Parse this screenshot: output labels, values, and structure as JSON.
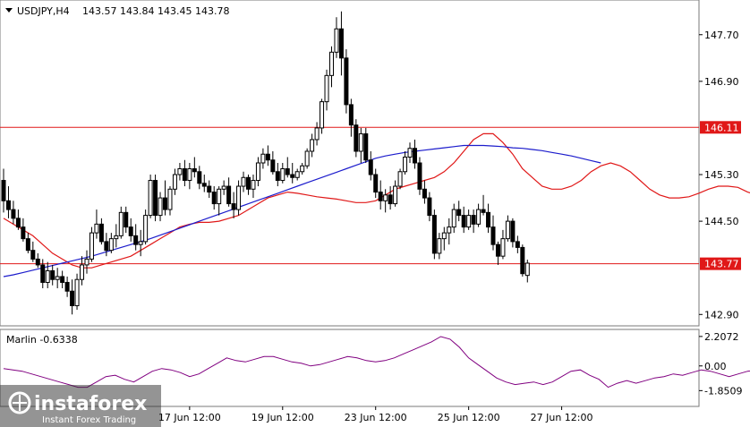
{
  "header": {
    "symbol": "USDJPY,H4",
    "ohlc": "143.57 143.84 143.45 143.78"
  },
  "indicator": {
    "label": "Marlin -0.6338",
    "ticks": [
      "2.2072",
      "0.00",
      "-1.8509"
    ],
    "tick_values": [
      2.2072,
      0.0,
      -1.8509
    ],
    "ylim": [
      -2.9,
      2.6
    ]
  },
  "watermark": {
    "brand": "instaforex",
    "tagline": "Instant Forex Trading"
  },
  "colors": {
    "candle": "#000000",
    "fast_ma": "#e01818",
    "slow_ma": "#1c1ccc",
    "hline": "#e01818",
    "oscillator": "#800080",
    "tag_bg": "#e01818",
    "panel_bg": "#eeeeee"
  },
  "chart_data": {
    "type": "candlestick",
    "ylim": [
      142.72,
      148.28
    ],
    "y_ticks": [
      "147.70",
      "146.90",
      "146.11",
      "145.30",
      "144.50",
      "143.77",
      "142.90"
    ],
    "y_tick_values": [
      147.7,
      146.9,
      146.11,
      145.3,
      144.5,
      143.77,
      142.9
    ],
    "x_ticks": [
      "17 Jun 12:00",
      "19 Jun 12:00",
      "23 Jun 12:00",
      "25 Jun 12:00",
      "27 Jun 12:00"
    ],
    "x_tick_candle_index": [
      38,
      57,
      76,
      95,
      114
    ],
    "candles": [
      [
        145.2,
        145.4,
        144.65,
        144.85
      ],
      [
        144.85,
        145.1,
        144.55,
        144.7
      ],
      [
        144.7,
        144.85,
        144.45,
        144.55
      ],
      [
        144.55,
        144.7,
        144.35,
        144.4
      ],
      [
        144.4,
        144.55,
        144.15,
        144.2
      ],
      [
        144.2,
        144.3,
        143.95,
        144.0
      ],
      [
        144.0,
        144.15,
        143.8,
        143.85
      ],
      [
        143.85,
        143.95,
        143.7,
        143.75
      ],
      [
        143.75,
        143.85,
        143.35,
        143.45
      ],
      [
        143.45,
        143.8,
        143.35,
        143.65
      ],
      [
        143.65,
        143.75,
        143.4,
        143.5
      ],
      [
        143.5,
        143.7,
        143.35,
        143.55
      ],
      [
        143.55,
        143.65,
        143.35,
        143.45
      ],
      [
        143.45,
        143.55,
        143.2,
        143.3
      ],
      [
        143.3,
        143.5,
        142.9,
        143.05
      ],
      [
        143.05,
        143.6,
        142.98,
        143.5
      ],
      [
        143.5,
        143.9,
        143.4,
        143.75
      ],
      [
        143.75,
        144.0,
        143.6,
        143.85
      ],
      [
        143.85,
        144.4,
        143.8,
        144.3
      ],
      [
        144.3,
        144.7,
        144.2,
        144.45
      ],
      [
        144.45,
        144.55,
        144.1,
        144.15
      ],
      [
        144.15,
        144.3,
        143.9,
        144.0
      ],
      [
        144.0,
        144.3,
        143.95,
        144.2
      ],
      [
        144.2,
        144.45,
        144.05,
        144.25
      ],
      [
        144.25,
        144.75,
        144.2,
        144.65
      ],
      [
        144.65,
        144.75,
        144.3,
        144.4
      ],
      [
        144.4,
        144.55,
        144.15,
        144.25
      ],
      [
        144.25,
        144.45,
        144.0,
        144.1
      ],
      [
        144.1,
        144.35,
        143.9,
        144.15
      ],
      [
        144.15,
        144.7,
        144.1,
        144.6
      ],
      [
        144.6,
        145.3,
        144.55,
        145.2
      ],
      [
        145.2,
        145.3,
        144.5,
        144.6
      ],
      [
        144.6,
        145.0,
        144.5,
        144.9
      ],
      [
        144.9,
        145.2,
        144.6,
        144.7
      ],
      [
        144.7,
        145.1,
        144.6,
        145.05
      ],
      [
        145.05,
        145.4,
        144.95,
        145.3
      ],
      [
        145.3,
        145.5,
        145.2,
        145.4
      ],
      [
        145.4,
        145.55,
        145.1,
        145.2
      ],
      [
        145.2,
        145.5,
        145.05,
        145.4
      ],
      [
        145.4,
        145.6,
        145.25,
        145.35
      ],
      [
        145.35,
        145.45,
        145.05,
        145.15
      ],
      [
        145.15,
        145.3,
        145.0,
        145.1
      ],
      [
        145.1,
        145.2,
        144.9,
        145.0
      ],
      [
        145.0,
        145.1,
        144.7,
        144.8
      ],
      [
        144.8,
        145.1,
        144.6,
        145.05
      ],
      [
        145.05,
        145.2,
        144.95,
        145.1
      ],
      [
        145.1,
        145.25,
        144.75,
        144.8
      ],
      [
        144.8,
        145.0,
        144.55,
        144.7
      ],
      [
        144.7,
        145.2,
        144.6,
        145.1
      ],
      [
        145.1,
        145.35,
        145.0,
        145.25
      ],
      [
        145.25,
        145.3,
        144.95,
        145.05
      ],
      [
        145.05,
        145.3,
        144.9,
        145.2
      ],
      [
        145.2,
        145.6,
        145.1,
        145.5
      ],
      [
        145.5,
        145.75,
        145.4,
        145.65
      ],
      [
        145.65,
        145.8,
        145.45,
        145.55
      ],
      [
        145.55,
        145.7,
        145.3,
        145.35
      ],
      [
        145.35,
        145.5,
        145.1,
        145.2
      ],
      [
        145.2,
        145.5,
        145.15,
        145.4
      ],
      [
        145.4,
        145.6,
        145.25,
        145.3
      ],
      [
        145.3,
        145.5,
        145.15,
        145.25
      ],
      [
        145.25,
        145.4,
        145.2,
        145.35
      ],
      [
        145.35,
        145.5,
        145.3,
        145.45
      ],
      [
        145.45,
        145.75,
        145.4,
        145.7
      ],
      [
        145.7,
        146.0,
        145.6,
        145.9
      ],
      [
        145.9,
        146.2,
        145.8,
        146.1
      ],
      [
        146.1,
        146.6,
        146.0,
        146.55
      ],
      [
        146.55,
        147.1,
        146.4,
        147.0
      ],
      [
        147.0,
        147.5,
        146.8,
        147.4
      ],
      [
        147.4,
        148.0,
        147.3,
        147.8
      ],
      [
        147.8,
        148.1,
        147.0,
        147.3
      ],
      [
        147.3,
        147.45,
        146.35,
        146.5
      ],
      [
        146.5,
        146.6,
        145.95,
        146.15
      ],
      [
        146.15,
        146.25,
        145.6,
        145.7
      ],
      [
        145.7,
        146.1,
        145.5,
        146.0
      ],
      [
        146.0,
        146.1,
        145.5,
        145.55
      ],
      [
        145.55,
        145.7,
        145.2,
        145.3
      ],
      [
        145.3,
        145.4,
        144.9,
        145.0
      ],
      [
        145.0,
        145.2,
        144.7,
        144.85
      ],
      [
        144.85,
        145.05,
        144.65,
        144.95
      ],
      [
        144.95,
        145.1,
        144.7,
        144.8
      ],
      [
        144.8,
        145.2,
        144.75,
        145.1
      ],
      [
        145.1,
        145.4,
        145.05,
        145.35
      ],
      [
        145.35,
        145.7,
        145.3,
        145.6
      ],
      [
        145.6,
        145.85,
        145.5,
        145.75
      ],
      [
        145.75,
        145.9,
        145.4,
        145.5
      ],
      [
        145.5,
        145.6,
        144.95,
        145.05
      ],
      [
        145.05,
        145.2,
        144.8,
        144.9
      ],
      [
        144.9,
        145.0,
        144.5,
        144.6
      ],
      [
        144.6,
        144.7,
        143.85,
        143.95
      ],
      [
        143.95,
        144.3,
        143.85,
        144.2
      ],
      [
        144.2,
        144.4,
        144.0,
        144.3
      ],
      [
        144.3,
        144.55,
        144.1,
        144.4
      ],
      [
        144.4,
        144.8,
        144.3,
        144.7
      ],
      [
        144.7,
        144.85,
        144.5,
        144.6
      ],
      [
        144.6,
        144.75,
        144.3,
        144.4
      ],
      [
        144.4,
        144.7,
        144.35,
        144.6
      ],
      [
        144.6,
        144.7,
        144.3,
        144.45
      ],
      [
        144.45,
        144.8,
        144.4,
        144.7
      ],
      [
        144.7,
        144.95,
        144.6,
        144.65
      ],
      [
        144.65,
        144.8,
        144.3,
        144.4
      ],
      [
        144.4,
        144.6,
        144.0,
        144.1
      ],
      [
        144.1,
        144.15,
        143.75,
        143.9
      ],
      [
        143.9,
        144.35,
        143.85,
        144.2
      ],
      [
        144.2,
        144.6,
        144.15,
        144.5
      ],
      [
        144.5,
        144.55,
        144.05,
        144.15
      ],
      [
        144.15,
        144.25,
        143.95,
        144.05
      ],
      [
        144.05,
        144.1,
        143.55,
        143.6
      ],
      [
        143.57,
        143.84,
        143.45,
        143.78
      ]
    ],
    "fast_ma": [
      144.55,
      144.45,
      144.35,
      144.25,
      144.1,
      143.95,
      143.85,
      143.75,
      143.7,
      143.7,
      143.75,
      143.8,
      143.85,
      143.9,
      144.0,
      144.1,
      144.2,
      144.3,
      144.4,
      144.45,
      144.48,
      144.48,
      144.5,
      144.55,
      144.6,
      144.7,
      144.8,
      144.9,
      144.95,
      145.0,
      144.98,
      144.95,
      144.92,
      144.9,
      144.88,
      144.85,
      144.82,
      144.82,
      144.85,
      144.95,
      145.05,
      145.1,
      145.15,
      145.2,
      145.25,
      145.35,
      145.5,
      145.7,
      145.9,
      146.0,
      146.0,
      145.85,
      145.65,
      145.4,
      145.25,
      145.1,
      145.05,
      145.05,
      145.1,
      145.2,
      145.35,
      145.45,
      145.5,
      145.45,
      145.35,
      145.2,
      145.05,
      144.95,
      144.9,
      144.9,
      144.92,
      144.98,
      145.05,
      145.1,
      145.1,
      145.08,
      145.0,
      144.95,
      144.88,
      144.8
    ],
    "fast_ma_start": 0,
    "slow_ma": [
      143.55,
      143.58,
      143.62,
      143.66,
      143.7,
      143.74,
      143.78,
      143.82,
      143.86,
      143.9,
      143.95,
      144.0,
      144.05,
      144.1,
      144.15,
      144.2,
      144.26,
      144.32,
      144.38,
      144.44,
      144.5,
      144.56,
      144.62,
      144.68,
      144.74,
      144.8,
      144.86,
      144.92,
      144.98,
      145.04,
      145.1,
      145.16,
      145.22,
      145.28,
      145.34,
      145.4,
      145.46,
      145.52,
      145.58,
      145.62,
      145.65,
      145.68,
      145.7,
      145.72,
      145.74,
      145.76,
      145.78,
      145.8,
      145.8,
      145.8,
      145.79,
      145.78,
      145.76,
      145.75,
      145.73,
      145.71,
      145.68,
      145.65,
      145.62,
      145.58,
      145.54,
      145.5
    ],
    "slow_ma_start": 0,
    "horizontal_lines": [
      146.11,
      143.77
    ],
    "oscillator": [
      -0.2,
      -0.3,
      -0.4,
      -0.6,
      -0.8,
      -1.0,
      -1.2,
      -1.4,
      -1.6,
      -1.6,
      -1.2,
      -0.8,
      -0.7,
      -1.0,
      -1.2,
      -0.8,
      -0.4,
      -0.2,
      -0.3,
      -0.5,
      -0.8,
      -0.6,
      -0.2,
      0.2,
      0.6,
      0.4,
      0.3,
      0.5,
      0.7,
      0.7,
      0.5,
      0.3,
      0.2,
      0.0,
      0.1,
      0.3,
      0.5,
      0.7,
      0.6,
      0.4,
      0.3,
      0.4,
      0.6,
      0.9,
      1.2,
      1.5,
      1.8,
      2.2,
      2.0,
      1.4,
      0.6,
      0.1,
      -0.4,
      -0.9,
      -1.2,
      -1.4,
      -1.3,
      -1.2,
      -1.4,
      -1.2,
      -0.8,
      -0.4,
      -0.3,
      -0.7,
      -1.0,
      -1.6,
      -1.3,
      -1.1,
      -1.3,
      -1.1,
      -0.9,
      -0.8,
      -0.6,
      -0.7,
      -0.5,
      -0.3,
      -0.4,
      -0.6,
      -0.8,
      -0.6,
      -0.4,
      -0.3,
      -0.4,
      -0.6,
      -0.6
    ]
  }
}
